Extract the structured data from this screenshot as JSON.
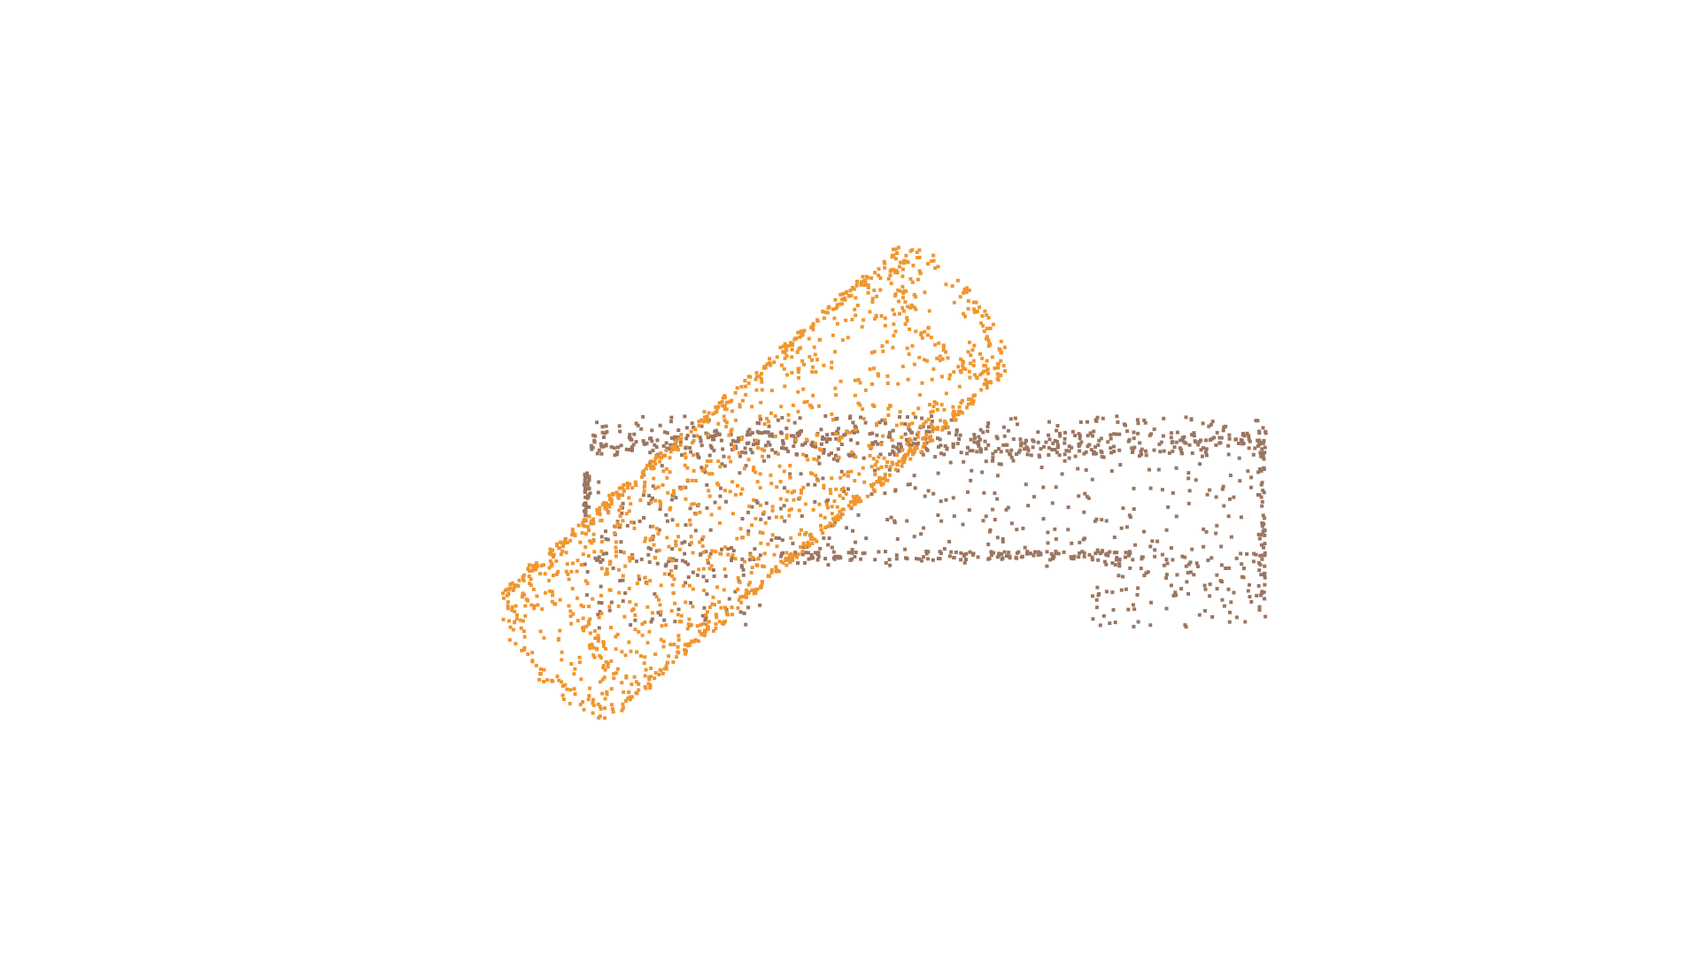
{
  "scene": {
    "background": "#ffffff",
    "objects": [
      {
        "name": "brown-bench",
        "color": "#9b7660",
        "shape": "box-edges"
      },
      {
        "name": "orange-cylinder",
        "color": "#f0962f",
        "shape": "tilted-cylinder"
      }
    ]
  }
}
